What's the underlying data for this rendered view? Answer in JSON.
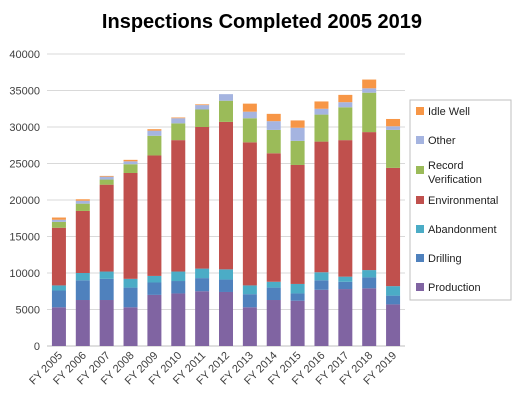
{
  "chart_data": {
    "type": "bar",
    "stacked": true,
    "title": "Inspections Completed 2005 2019",
    "xlabel": "",
    "ylabel": "",
    "ylim": [
      0,
      40000
    ],
    "yticks": [
      0,
      5000,
      10000,
      15000,
      20000,
      25000,
      30000,
      35000,
      40000
    ],
    "grid": true,
    "legend_position": "right",
    "categories": [
      "FY 2005",
      "FY 2006",
      "FY 2007",
      "FY 2008",
      "FY 2009",
      "FY 2010",
      "FY 2011",
      "FY 2012",
      "FY 2013",
      "FY 2014",
      "FY 2015",
      "FY 2016",
      "FY 2017",
      "FY 2018",
      "FY 2019"
    ],
    "series": [
      {
        "name": "Production",
        "color": "#8064a2",
        "values": [
          5300,
          6300,
          6300,
          5300,
          7000,
          7200,
          7500,
          7400,
          5300,
          6300,
          6200,
          7700,
          7800,
          7900,
          5700
        ]
      },
      {
        "name": "Drilling",
        "color": "#4f81bd",
        "values": [
          2300,
          2700,
          2900,
          2700,
          1700,
          1700,
          1800,
          1700,
          1800,
          1700,
          1000,
          1300,
          1000,
          1500,
          1200
        ]
      },
      {
        "name": "Abandonment",
        "color": "#4bacc6",
        "values": [
          700,
          1000,
          1000,
          1200,
          900,
          1300,
          1300,
          1400,
          1200,
          800,
          1300,
          1100,
          700,
          1000,
          1300
        ]
      },
      {
        "name": "Environmental",
        "color": "#c0504d",
        "values": [
          7900,
          8500,
          11900,
          14500,
          16500,
          18000,
          19400,
          20200,
          19600,
          17600,
          16300,
          17900,
          18700,
          18900,
          16200
        ]
      },
      {
        "name": "Record Verification",
        "color": "#9bbb59",
        "values": [
          800,
          1000,
          700,
          1200,
          2700,
          2300,
          2400,
          2900,
          3300,
          3200,
          3300,
          3700,
          4500,
          5400,
          5200
        ]
      },
      {
        "name": "Other",
        "color": "#a5b4e0",
        "values": [
          300,
          400,
          400,
          400,
          700,
          700,
          600,
          900,
          900,
          1200,
          1800,
          800,
          700,
          600,
          500
        ]
      },
      {
        "name": "Idle Well",
        "color": "#f79646",
        "values": [
          300,
          200,
          100,
          200,
          200,
          100,
          100,
          0,
          1100,
          1000,
          1000,
          1000,
          1000,
          1200,
          1000
        ]
      }
    ]
  }
}
